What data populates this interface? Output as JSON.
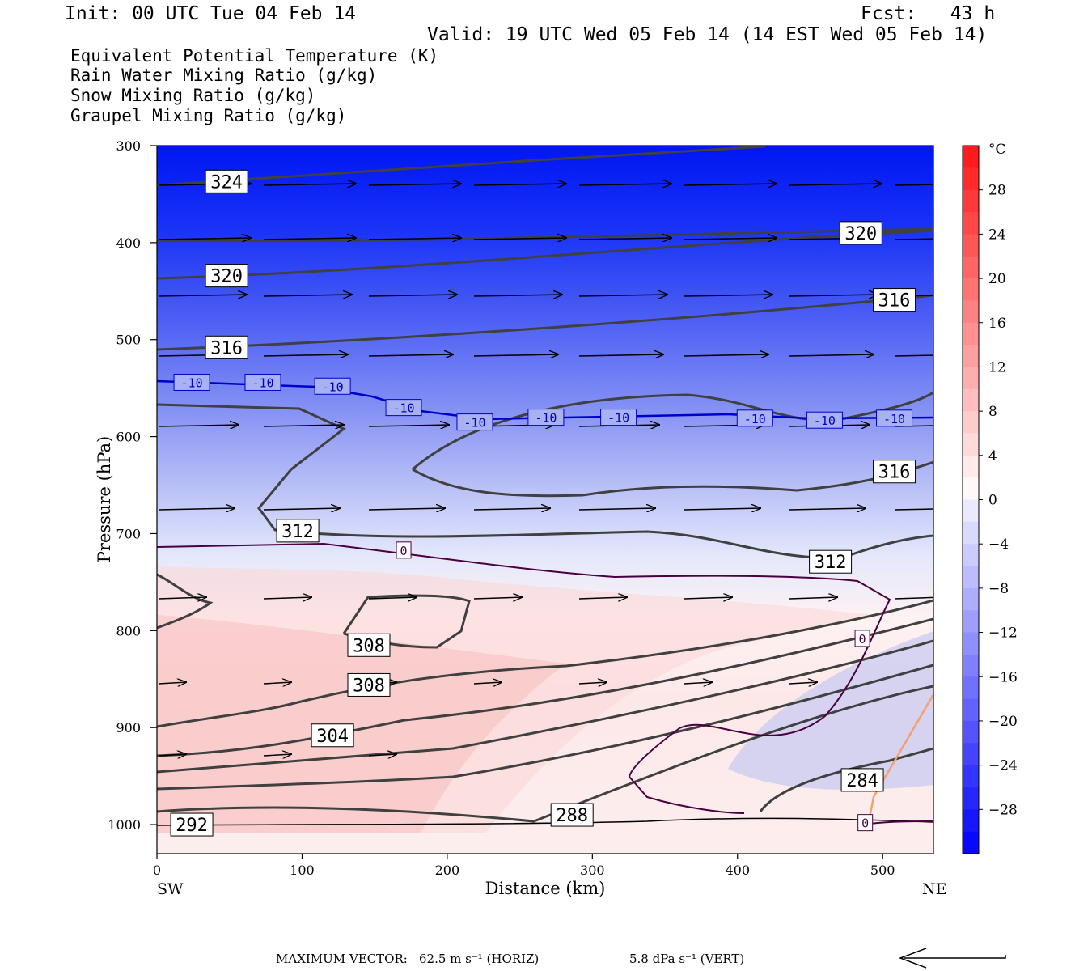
{
  "header": {
    "init": "Init: 00 UTC Tue 04 Feb 14",
    "fcst": "Fcst:   43 h",
    "valid": "Valid: 19 UTC Wed 05 Feb 14 (14 EST Wed 05 Feb 14)"
  },
  "legend": [
    {
      "label": "Equivalent Potential Temperature (K)",
      "color": "#555555"
    },
    {
      "label": "Rain Water Mixing Ratio (g/kg)",
      "color": "#1a7a1a"
    },
    {
      "label": "Snow Mixing Ratio (g/kg)",
      "color": "#f4a070"
    },
    {
      "label": "Graupel Mixing Ratio (g/kg)",
      "color": "#ee82ee"
    }
  ],
  "chart_data": {
    "type": "cross-section",
    "ylabel": "Pressure (hPa)",
    "xlabel": "Distance (km)",
    "x_left_label": "SW",
    "x_right_label": "NE",
    "xlim": [
      0,
      535
    ],
    "ylim": [
      1030,
      300
    ],
    "x_ticks": [
      0,
      100,
      200,
      300,
      400,
      500
    ],
    "y_ticks": [
      300,
      400,
      500,
      600,
      700,
      800,
      900,
      1000
    ],
    "colorbar": {
      "unit": "°C",
      "ticks": [
        28,
        24,
        20,
        16,
        12,
        8,
        4,
        0,
        -4,
        -8,
        -12,
        -16,
        -20,
        -24,
        -28
      ],
      "range": [
        -32,
        32
      ]
    },
    "theta_e_labels": [
      {
        "text": "324",
        "x": 48,
        "p": 337
      },
      {
        "text": "320",
        "x": 485,
        "p": 390
      },
      {
        "text": "320",
        "x": 48,
        "p": 434
      },
      {
        "text": "316",
        "x": 508,
        "p": 459
      },
      {
        "text": "316",
        "x": 48,
        "p": 508
      },
      {
        "text": "316",
        "x": 508,
        "p": 636
      },
      {
        "text": "312",
        "x": 97,
        "p": 697
      },
      {
        "text": "312",
        "x": 464,
        "p": 729
      },
      {
        "text": "308",
        "x": 146,
        "p": 815
      },
      {
        "text": "308",
        "x": 146,
        "p": 856
      },
      {
        "text": "304",
        "x": 121,
        "p": 908
      },
      {
        "text": "284",
        "x": 486,
        "p": 954
      },
      {
        "text": "288",
        "x": 286,
        "p": 990
      },
      {
        "text": "292",
        "x": 24,
        "p": 1000
      }
    ],
    "isotherm_labels": [
      {
        "text": "-10",
        "x": 24,
        "p": 544
      },
      {
        "text": "-10",
        "x": 73,
        "p": 544
      },
      {
        "text": "-10",
        "x": 121,
        "p": 548
      },
      {
        "text": "-10",
        "x": 170,
        "p": 570
      },
      {
        "text": "-10",
        "x": 219,
        "p": 585
      },
      {
        "text": "-10",
        "x": 268,
        "p": 580
      },
      {
        "text": "-10",
        "x": 318,
        "p": 580
      },
      {
        "text": "-10",
        "x": 412,
        "p": 581
      },
      {
        "text": "-10",
        "x": 460,
        "p": 583
      },
      {
        "text": "-10",
        "x": 508,
        "p": 581
      },
      {
        "text": "0",
        "x": 170,
        "p": 717
      },
      {
        "text": "0",
        "x": 486,
        "p": 808
      },
      {
        "text": "0",
        "x": 488,
        "p": 998
      }
    ],
    "colors": {
      "theta_e": "#404040",
      "isotherm_m10": "#0000cc",
      "isotherm_0": "#4a0040",
      "snow": "#f4a070",
      "zero_line": "#000000"
    }
  },
  "footer": {
    "max_vector": "MAXIMUM VECTOR:",
    "horiz": "62.5 m s⁻¹ (HORIZ)",
    "vert": "5.8 dPa s⁻¹ (VERT)"
  }
}
